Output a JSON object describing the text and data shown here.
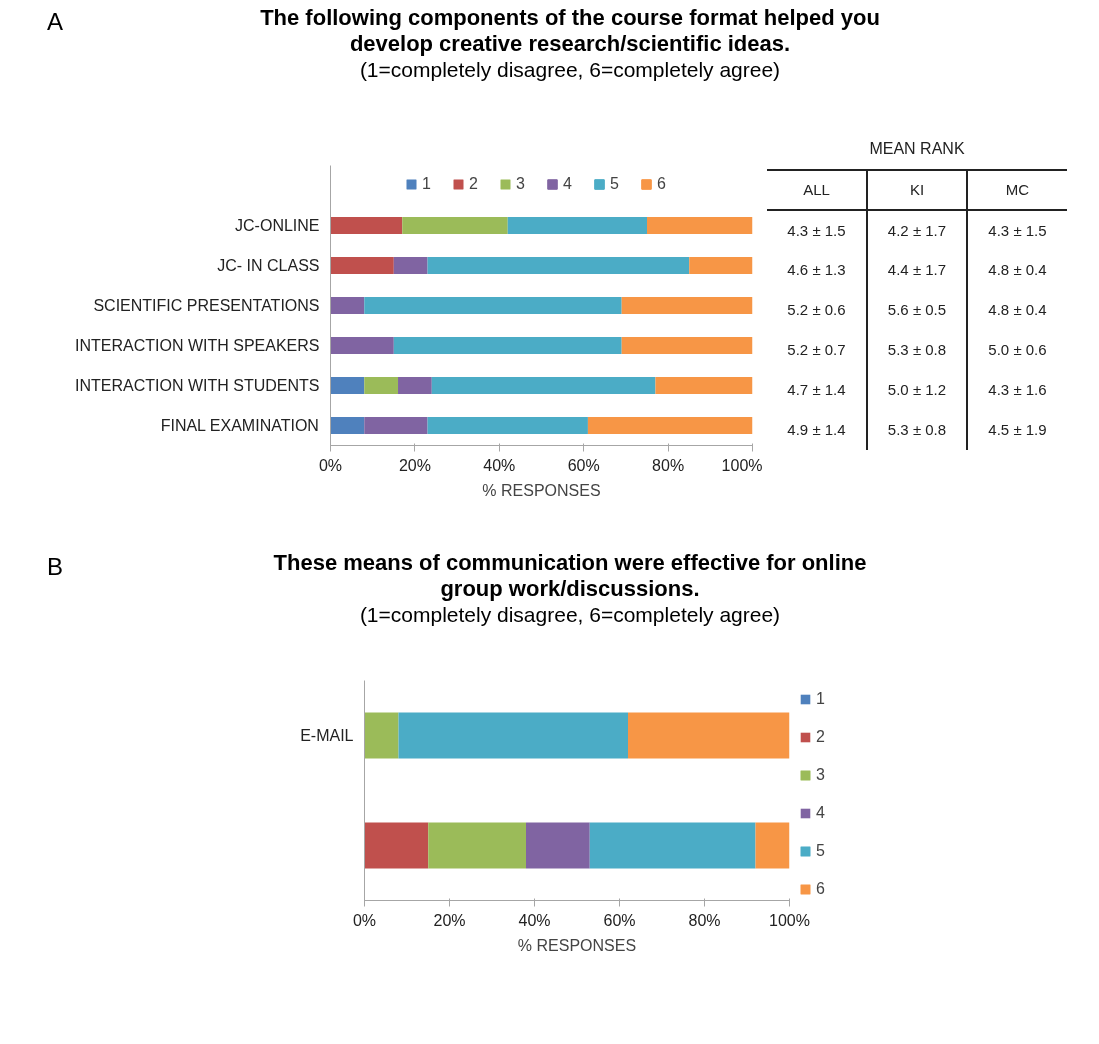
{
  "chart_data": [
    {
      "type": "bar",
      "orientation": "horizontal",
      "stacked": true,
      "title": "The following components of the course format helped you develop creative research/scientific ideas.",
      "subtitle": "(1=completely disagree, 6=completely agree)",
      "xlabel": "% RESPONSES",
      "categories": [
        "JC-ONLINE",
        "JC- IN CLASS",
        "SCIENTIFIC PRESENTATIONS",
        "INTERACTION WITH SPEAKERS",
        "INTERACTION WITH STUDENTS",
        "FINAL EXAMINATION"
      ],
      "series": [
        {
          "name": "1",
          "color": "#4f81bd",
          "values": [
            null,
            null,
            null,
            null,
            8,
            8
          ]
        },
        {
          "name": "2",
          "color": "#c0504d",
          "values": [
            17,
            15,
            null,
            null,
            null,
            null
          ]
        },
        {
          "name": "3",
          "color": "#9bbb59",
          "values": [
            25,
            null,
            null,
            null,
            8,
            null
          ]
        },
        {
          "name": "4",
          "color": "#8064a2",
          "values": [
            null,
            8,
            8,
            15,
            8,
            15
          ]
        },
        {
          "name": "5",
          "color": "#4bacc6",
          "values": [
            33,
            62,
            61,
            54,
            53,
            38
          ]
        },
        {
          "name": "6",
          "color": "#f79646",
          "values": [
            25,
            15,
            31,
            31,
            23,
            39
          ]
        }
      ],
      "xlim": [
        0,
        100
      ],
      "xticks": [
        {
          "value": 0,
          "label": "0%"
        },
        {
          "value": 20,
          "label": "20%"
        },
        {
          "value": 40,
          "label": "40%"
        },
        {
          "value": 60,
          "label": "60%"
        },
        {
          "value": 80,
          "label": "80%"
        },
        {
          "value": 100,
          "label": "100%"
        }
      ],
      "legend": "top",
      "annotations": [
        "A"
      ]
    },
    {
      "type": "other",
      "annotations": [
        "MEAN RANK",
        "ALL",
        "KI",
        "MC",
        "4.3 ± 1.5",
        "4.2 ± 1.7",
        "4.3 ± 1.5",
        "4.6 ± 1.3",
        "4.4 ± 1.7",
        "4.8 ± 0.4",
        "5.2 ± 0.6",
        "5.6 ± 0.5",
        "4.8 ± 0.4",
        "5.2 ± 0.7",
        "5.3 ± 0.8",
        "5.0 ± 0.6",
        "4.7 ± 1.4",
        "5.0 ± 1.2",
        "4.3 ± 1.6",
        "4.9 ± 1.4",
        "5.3 ± 0.8",
        "4.5 ± 1.9"
      ]
    },
    {
      "type": "bar",
      "orientation": "horizontal",
      "stacked": true,
      "title": "These means of communication were effective for online group work/discussions.",
      "subtitle": "(1=completely disagree, 6=completely agree)",
      "xlabel": "% RESPONSES",
      "categories": [
        "E-MAIL",
        null
      ],
      "series": [
        {
          "name": "1",
          "color": "#4f81bd",
          "values": [
            null,
            null
          ]
        },
        {
          "name": "2",
          "color": "#c0504d",
          "values": [
            null,
            15
          ]
        },
        {
          "name": "3",
          "color": "#9bbb59",
          "values": [
            8,
            23
          ]
        },
        {
          "name": "4",
          "color": "#8064a2",
          "values": [
            null,
            15
          ]
        },
        {
          "name": "5",
          "color": "#4bacc6",
          "values": [
            54,
            39
          ]
        },
        {
          "name": "6",
          "color": "#f79646",
          "values": [
            38,
            8
          ]
        }
      ],
      "xlim": [
        0,
        100
      ],
      "xticks": [
        {
          "value": 0,
          "label": "0%"
        },
        {
          "value": 20,
          "label": "20%"
        },
        {
          "value": 40,
          "label": "40%"
        },
        {
          "value": 60,
          "label": "60%"
        },
        {
          "value": 80,
          "label": "80%"
        },
        {
          "value": 100,
          "label": "100%"
        }
      ],
      "legend": "right",
      "annotations": [
        "B"
      ]
    }
  ]
}
